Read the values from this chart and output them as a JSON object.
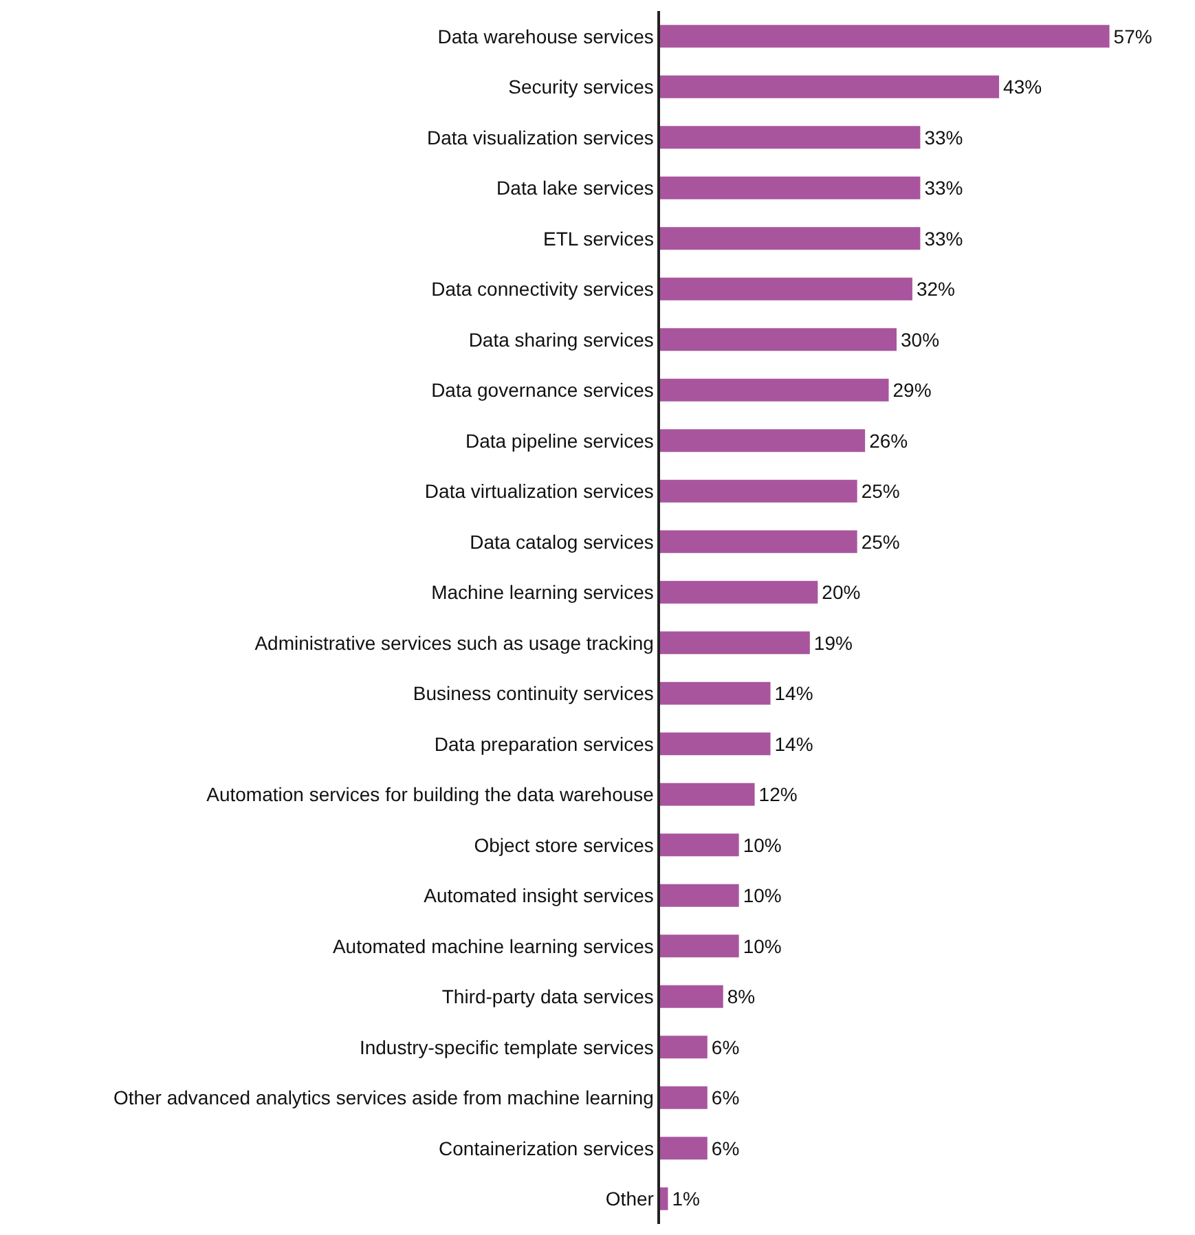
{
  "chart_data": {
    "type": "bar",
    "orientation": "horizontal",
    "categories": [
      "Data warehouse services",
      "Security services",
      "Data visualization services",
      "Data lake services",
      "ETL services",
      "Data connectivity services",
      "Data sharing services",
      "Data governance services",
      "Data pipeline services",
      "Data virtualization services",
      "Data catalog services",
      "Machine learning services",
      "Administrative services such as usage tracking",
      "Business continuity services",
      "Data preparation services",
      "Automation services for building the data warehouse",
      "Object store services",
      "Automated insight services",
      "Automated machine learning services",
      "Third-party data services",
      "Industry-specific template services",
      "Other advanced analytics services aside from machine learning",
      "Containerization services",
      "Other"
    ],
    "values": [
      57,
      43,
      33,
      33,
      33,
      32,
      30,
      29,
      26,
      25,
      25,
      20,
      19,
      14,
      14,
      12,
      10,
      10,
      10,
      8,
      6,
      6,
      6,
      1
    ],
    "value_labels": [
      "57%",
      "43%",
      "33%",
      "33%",
      "33%",
      "32%",
      "30%",
      "29%",
      "26%",
      "25%",
      "25%",
      "20%",
      "19%",
      "14%",
      "14%",
      "12%",
      "10%",
      "10%",
      "10%",
      "8%",
      "6%",
      "6%",
      "6%",
      "1%"
    ],
    "color": "#a8559e",
    "tick_labels": "y"
  }
}
